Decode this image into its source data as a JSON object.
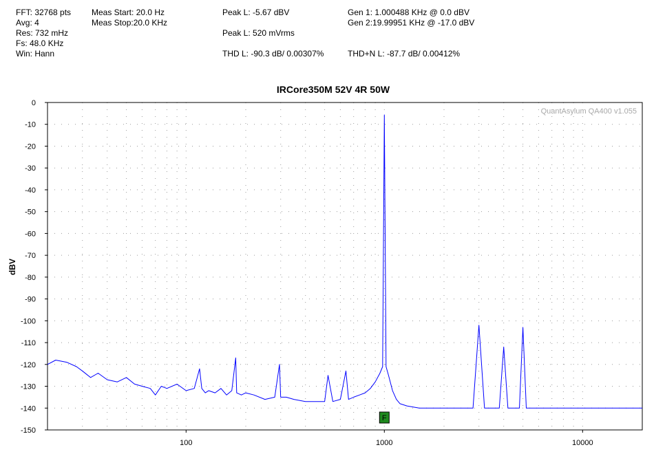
{
  "header": {
    "fft": "FFT: 32768 pts",
    "avg": "Avg: 4",
    "res": "Res: 732 mHz",
    "fs": "Fs: 48.0 KHz",
    "win": "Win: Hann",
    "meas_start": "Meas Start: 20.0 Hz",
    "meas_stop": "Meas Stop:20.0 KHz",
    "peak_l_dbv": "Peak L: -5.67 dBV",
    "peak_l_vrms": "Peak L: 520 mVrms",
    "thd_l": "THD L: -90.3 dB/ 0.00307%",
    "gen1": "Gen 1: 1.000488 KHz @ 0.0  dBV",
    "gen2": "Gen 2:19.99951 KHz @ -17.0  dBV",
    "thdn_l": "THD+N L: -87.7 dB/ 0.00412%"
  },
  "watermark": "QuantAsylum QA400 v1.055",
  "marker_label": "F",
  "colors": {
    "trace": "#0000ff",
    "marker_fill": "#1f8a1f",
    "grid": "#9a9a9a",
    "watermark": "#a8a8a8"
  },
  "chart_data": {
    "type": "line",
    "title": "IRCore350M 52V 4R 50W",
    "xlabel": "",
    "ylabel": "dBV",
    "x_scale": "log",
    "xlim": [
      20,
      20000
    ],
    "ylim": [
      -150,
      0
    ],
    "x_ticks": [
      100,
      1000,
      10000
    ],
    "x_tick_labels": [
      "100",
      "1000",
      "10000"
    ],
    "y_ticks": [
      0,
      -10,
      -20,
      -30,
      -40,
      -50,
      -60,
      -70,
      -80,
      -90,
      -100,
      -110,
      -120,
      -130,
      -140,
      -150
    ],
    "grid": true,
    "fundamental_marker_x": 1000,
    "series": [
      {
        "x": [
          20,
          22,
          25,
          28,
          30,
          33,
          36,
          40,
          45,
          50,
          55,
          60,
          66,
          70,
          75,
          80,
          90,
          100,
          110,
          117,
          120,
          125,
          130,
          140,
          150,
          160,
          170,
          178,
          180,
          190,
          200,
          220,
          250,
          280,
          296,
          300,
          320,
          350,
          400,
          450,
          480,
          500,
          520,
          550,
          600,
          640,
          660,
          700,
          750,
          800,
          850,
          900,
          950,
          980,
          1000,
          1020,
          1050,
          1100,
          1150,
          1200,
          1300,
          1500,
          1700,
          2000,
          2200,
          2500,
          2800,
          3000,
          3200,
          3500,
          3800,
          4000,
          4200,
          4500,
          4800,
          5000,
          5200,
          5500,
          6000,
          6500,
          7000,
          7500,
          8000,
          8500,
          9000,
          9500,
          10000,
          11000,
          12000,
          13000,
          14000,
          15000,
          16000,
          17000,
          18000,
          19000,
          20000
        ],
        "y": [
          -120,
          -118,
          -119,
          -121,
          -123,
          -126,
          -124,
          -127,
          -128,
          -126,
          -129,
          -130,
          -131,
          -134,
          -130,
          -131,
          -129,
          -132,
          -131,
          -122,
          -131,
          -133,
          -132,
          -133,
          -131,
          -134,
          -132,
          -117,
          -133,
          -134,
          -133,
          -134,
          -136,
          -135,
          -120,
          -135,
          -135,
          -136,
          -137,
          -137,
          -137,
          -137,
          -125,
          -137,
          -136,
          -123,
          -136,
          -135,
          -134,
          -133,
          -131,
          -128,
          -124,
          -121,
          -5.67,
          -121,
          -125,
          -132,
          -136,
          -138,
          -139,
          -140,
          -140,
          -140,
          -140,
          -140,
          -140,
          -102,
          -140,
          -140,
          -140,
          -112,
          -140,
          -140,
          -140,
          -103,
          -140,
          -140,
          -140,
          -140,
          -140,
          -140,
          -140,
          -140,
          -140,
          -140,
          -140,
          -140,
          -140,
          -140,
          -140,
          -140,
          -140,
          -140,
          -140,
          -140,
          -140
        ]
      }
    ]
  }
}
